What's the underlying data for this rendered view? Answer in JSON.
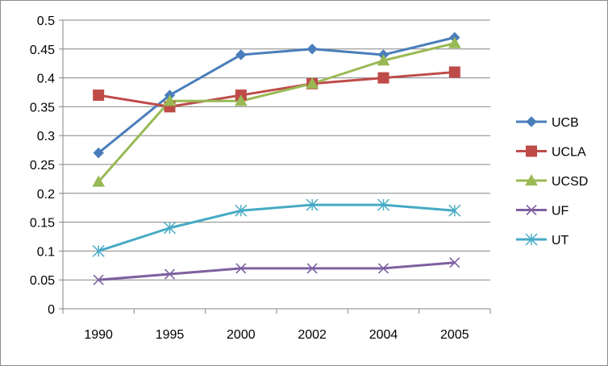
{
  "chart_data": {
    "type": "line",
    "title": "",
    "xlabel": "",
    "ylabel": "",
    "categories": [
      "1990",
      "1995",
      "2000",
      "2002",
      "2004",
      "2005"
    ],
    "ylim": [
      0,
      0.5
    ],
    "yticks": [
      0,
      0.05,
      0.1,
      0.15,
      0.2,
      0.25,
      0.3,
      0.35,
      0.4,
      0.45,
      0.5
    ],
    "ytick_labels": [
      "0",
      "0.05",
      "0.1",
      "0.15",
      "0.2",
      "0.25",
      "0.3",
      "0.35",
      "0.4",
      "0.45",
      "0.5"
    ],
    "grid": "horizontal",
    "legend_position": "right",
    "series": [
      {
        "name": "UCB",
        "color": "#4a7ebb",
        "marker": "diamond",
        "values": [
          0.27,
          0.37,
          0.44,
          0.45,
          0.44,
          0.47
        ]
      },
      {
        "name": "UCLA",
        "color": "#be4b48",
        "marker": "square",
        "values": [
          0.37,
          0.35,
          0.37,
          0.39,
          0.4,
          0.41
        ]
      },
      {
        "name": "UCSD",
        "color": "#98b954",
        "marker": "triangle",
        "values": [
          0.22,
          0.36,
          0.36,
          0.39,
          0.43,
          0.46
        ]
      },
      {
        "name": "UF",
        "color": "#7d60a0",
        "marker": "x",
        "values": [
          0.05,
          0.06,
          0.07,
          0.07,
          0.07,
          0.08
        ]
      },
      {
        "name": "UT",
        "color": "#46aac5",
        "marker": "star",
        "values": [
          0.1,
          0.14,
          0.17,
          0.18,
          0.18,
          0.17
        ]
      }
    ]
  }
}
